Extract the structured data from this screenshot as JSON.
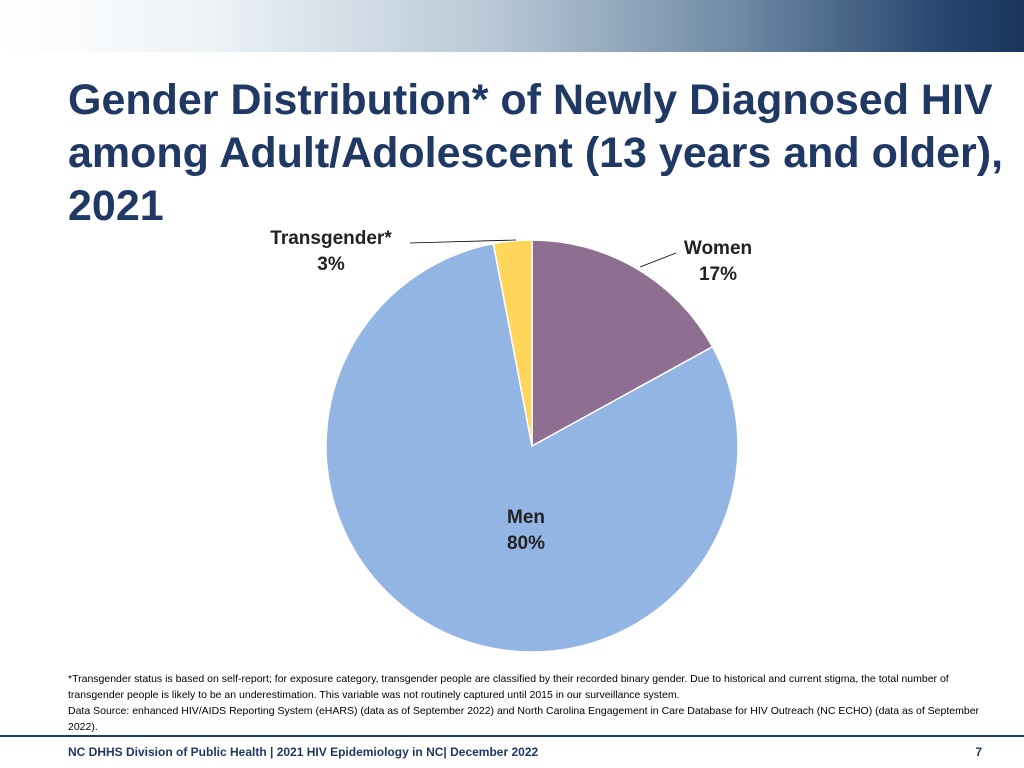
{
  "slide": {
    "title": "Gender Distribution* of Newly Diagnosed HIV among Adult/Adolescent (13 years and older), 2021",
    "footnote_1": "*Transgender status is based on self-report; for exposure category, transgender people are classified by their recorded binary gender. Due to historical and current stigma, the total number of transgender people is likely to be an underestimation. This variable was not routinely captured until 2015 in our surveillance system.",
    "footnote_2": "Data Source: enhanced HIV/AIDS Reporting System (eHARS) (data as of September 2022) and North Carolina Engagement in Care Database for HIV Outreach (NC ECHO) (data as of September 2022).",
    "footer": "NC DHHS Division of Public Health | 2021 HIV Epidemiology in NC| December 2022",
    "page_number": "7"
  },
  "chart_data": {
    "type": "pie",
    "title": "",
    "start_angle_deg": 0,
    "direction": "clockwise",
    "slices": [
      {
        "label": "Women",
        "value": 17,
        "value_label": "17%",
        "color": "#8e6f91"
      },
      {
        "label": "Men",
        "value": 80,
        "value_label": "80%",
        "color": "#93b5e3"
      },
      {
        "label": "Transgender*",
        "value": 3,
        "value_label": "3%",
        "color": "#ffd55a"
      }
    ]
  }
}
